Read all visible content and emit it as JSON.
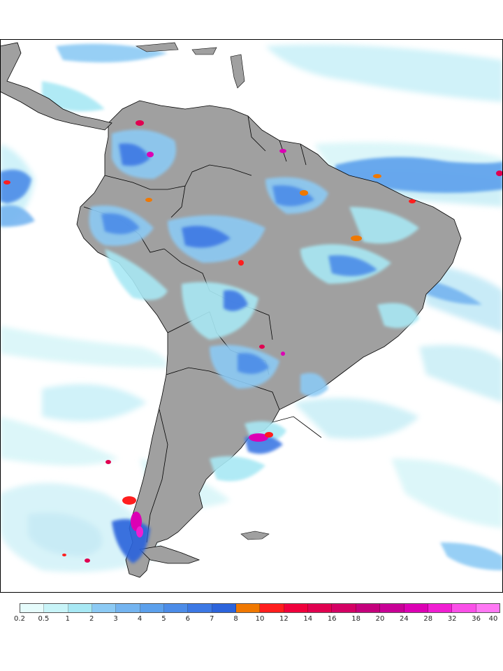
{
  "map": {
    "region": "South America",
    "ocean_color": "#ffffff",
    "land_color": "#a0a0a0",
    "border_color": "#000000"
  },
  "colorbar": {
    "colors": [
      "#e6fcfc",
      "#c8f4f8",
      "#a8e8f4",
      "#8ccaf4",
      "#74b4f0",
      "#5ca0ec",
      "#4c8ce8",
      "#3c78e4",
      "#2c64dc",
      "#f07800",
      "#ff1e1e",
      "#f0003c",
      "#e00050",
      "#d40064",
      "#c4007c",
      "#c80096",
      "#dc00b4",
      "#f01ed2",
      "#fa50e8",
      "#ff78f4"
    ],
    "labels": [
      "0.2",
      "0.5",
      "1",
      "2",
      "3",
      "4",
      "5",
      "6",
      "7",
      "8",
      "10",
      "12",
      "14",
      "16",
      "18",
      "20",
      "24",
      "28",
      "32",
      "36",
      "40"
    ]
  }
}
